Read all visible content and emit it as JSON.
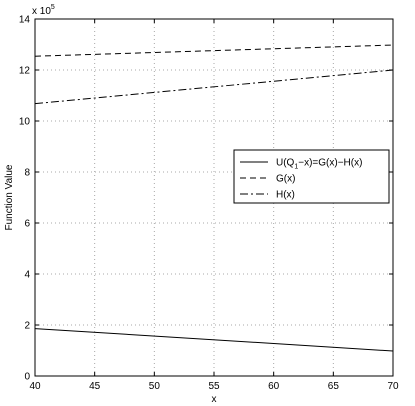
{
  "chart_data": {
    "type": "line",
    "xlabel": "x",
    "ylabel": "Function Value",
    "y_multiplier": {
      "base": "x 10",
      "exponent": "5"
    },
    "xlim": [
      40,
      70
    ],
    "ylim": [
      0,
      1400000
    ],
    "x_ticks": [
      40,
      45,
      50,
      55,
      60,
      65,
      70
    ],
    "y_ticks": [
      0,
      200000,
      400000,
      600000,
      800000,
      1000000,
      1200000,
      1400000
    ],
    "x_tick_labels": [
      "40",
      "45",
      "50",
      "55",
      "60",
      "65",
      "70"
    ],
    "y_tick_labels": [
      "0",
      "2",
      "4",
      "6",
      "8",
      "10",
      "12",
      "14"
    ],
    "grid": true,
    "legend_position": "right-middle",
    "series": [
      {
        "name": "U(Q1−x)=G(x)−H(x)",
        "name_parts": {
          "pre": "U(Q",
          "sub": "1",
          "post": "−x)=G(x)−H(x)"
        },
        "style": "solid",
        "color": "#000000",
        "x": [
          40,
          70
        ],
        "y": [
          186000,
          98000
        ]
      },
      {
        "name": "G(x)",
        "style": "dashed",
        "color": "#000000",
        "x": [
          40,
          70
        ],
        "y": [
          1254000,
          1298000
        ]
      },
      {
        "name": "H(x)",
        "style": "dashdot",
        "color": "#000000",
        "x": [
          40,
          70
        ],
        "y": [
          1068000,
          1200000
        ]
      }
    ]
  }
}
